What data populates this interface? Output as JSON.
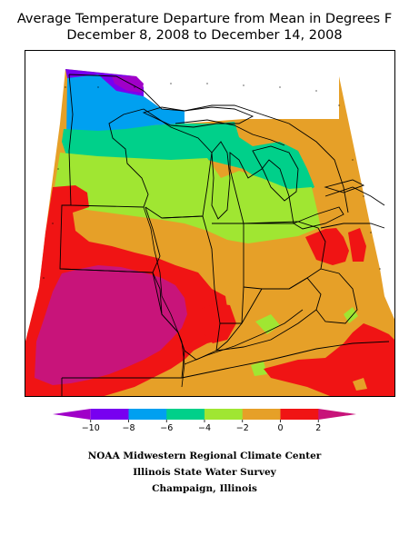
{
  "title_line1": "Average Temperature Departure from Mean in Degrees F",
  "title_line2": "December 8, 2008 to December 14, 2008",
  "legend": {
    "colors": [
      "#a000c8",
      "#7800f0",
      "#00a0f0",
      "#00d08a",
      "#a0e632",
      "#e6a028",
      "#f01414",
      "#c8147a"
    ],
    "tick_labels": [
      "−10",
      "−8",
      "−6",
      "−4",
      "−2",
      "0",
      "2"
    ]
  },
  "credits": {
    "line1": "NOAA Midwestern Regional Climate Center",
    "line2": "Illinois State Water Survey",
    "line3": "Champaign, Illinois"
  }
}
